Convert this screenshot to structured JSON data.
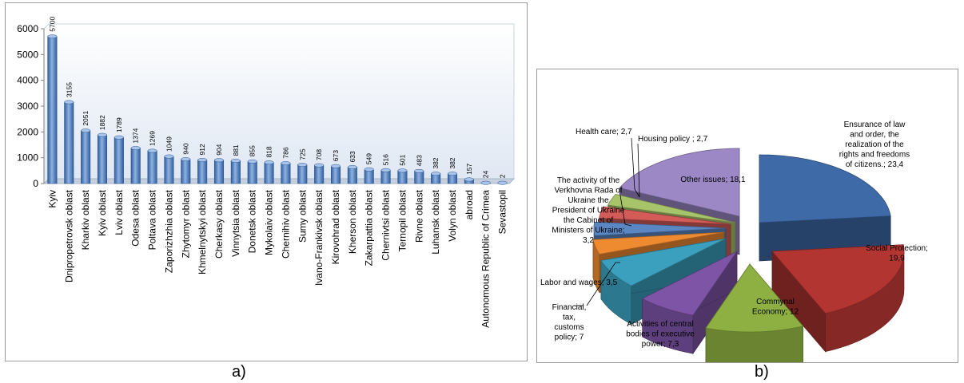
{
  "captions": {
    "a": "a)",
    "b": "b)"
  },
  "chart_data": [
    {
      "type": "bar",
      "ylim": [
        0,
        6000
      ],
      "yticks": [
        "0",
        "1000",
        "2000",
        "3000",
        "4000",
        "5000",
        "6000"
      ],
      "grid": false,
      "bar_color": "#4f7dbd",
      "categories": [
        "Kyiv",
        "Dnipropetrovsk oblast",
        "Kharkiv oblast",
        "Kyiv oblast",
        "Lviv oblast",
        "Odesa oblast",
        "Poltava oblast",
        "Zaporizhzhia oblast",
        "Zhytomyr oblast",
        "Khmelnytskyi oblast",
        "Cherkasy oblast",
        "Vinnytsia oblast",
        "Donetsk oblast",
        "Mykolaiv oblast",
        "Chernihiv oblast",
        "Sumy oblast",
        "Ivano-Frankivsk oblast",
        "Kirovohrad oblast",
        "Kherson oblast",
        "Zakarpattia oblast",
        "Chernivtsi oblast",
        "Ternopil oblast",
        "Rivne oblast",
        "Luhansk oblast",
        "Volyn oblast",
        "abroad",
        "Autonomous Republic of Crimea",
        "Sevastopil"
      ],
      "values": [
        5700,
        3155,
        2051,
        1882,
        1789,
        1374,
        1269,
        1049,
        940,
        912,
        904,
        881,
        855,
        818,
        786,
        725,
        708,
        673,
        633,
        549,
        516,
        501,
        483,
        382,
        382,
        157,
        24,
        2
      ],
      "value_labels": [
        "5700",
        "3155",
        "2051",
        "1882",
        "1789",
        "1374",
        "1269",
        "1049",
        "940",
        "912",
        "904",
        "881",
        "855",
        "818",
        "786",
        "725",
        "708",
        "673",
        "633",
        "549",
        "516",
        "501",
        "483",
        "382",
        "382",
        "157",
        "24",
        "2"
      ]
    },
    {
      "type": "pie",
      "slices": [
        {
          "label_lines": [
            "Ensurance of law",
            "and order, the",
            "realization of the",
            "rights and freedoms",
            "of citizens.; 23,4"
          ],
          "value": 23.4,
          "color": "#3e6aa8"
        },
        {
          "label_lines": [
            "Social Protection;",
            "19,9"
          ],
          "value": 19.9,
          "color": "#b33532"
        },
        {
          "label_lines": [
            "Commynal",
            "Economy; 12"
          ],
          "value": 12,
          "color": "#8eb043"
        },
        {
          "label_lines": [
            "Activities of central",
            "bodies of executive",
            "power; 7,3"
          ],
          "value": 7.3,
          "color": "#7d54a6"
        },
        {
          "label_lines": [
            "Financial,",
            "tax,",
            "customs",
            "policy; 7"
          ],
          "value": 7,
          "color": "#3aa0bd"
        },
        {
          "label_lines": [
            "Labor and wages; 3,5"
          ],
          "value": 3.5,
          "color": "#ee8a30"
        },
        {
          "label_lines": [
            "The activity of the",
            "Verkhovna Rada of",
            "Ukraine the",
            "President of Ukraine",
            "the Cabinet of",
            "Ministers of Ukraine;",
            "3,2"
          ],
          "value": 3.2,
          "color": "#5b86c4"
        },
        {
          "label_lines": [
            "Health care; 2,7"
          ],
          "value": 2.7,
          "color": "#d35c59"
        },
        {
          "label_lines": [
            "Housing policy ; 2,7"
          ],
          "value": 2.7,
          "color": "#a7c46b"
        },
        {
          "label_lines": [
            "Other issues; 18,1"
          ],
          "value": 18.1,
          "color": "#9c88c5"
        }
      ]
    }
  ]
}
